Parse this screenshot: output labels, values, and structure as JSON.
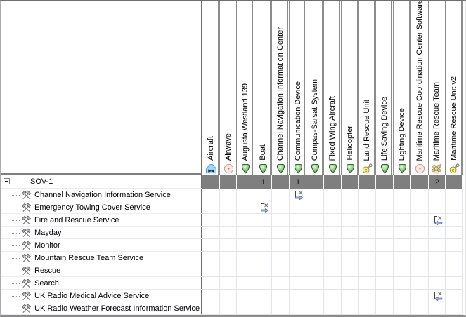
{
  "matrix": {
    "root": {
      "label": "SOV-1",
      "icon": "package-icon",
      "expander": "collapse"
    },
    "columns": [
      {
        "label": "Aircraft",
        "icon": "actor-icon",
        "count": ""
      },
      {
        "label": "Airwave",
        "icon": "disc-icon",
        "count": ""
      },
      {
        "label": "Augusta Westland 139",
        "icon": "capability-icon",
        "count": ""
      },
      {
        "label": "Boat",
        "icon": "capability-icon",
        "count": "1"
      },
      {
        "label": "Channel Navigation Information Center",
        "icon": "capability-icon",
        "count": ""
      },
      {
        "label": "Communication Device",
        "icon": "capability-icon",
        "count": "1"
      },
      {
        "label": "Compas-Sarsat System",
        "icon": "capability-icon",
        "count": ""
      },
      {
        "label": "Fixed Wing Aircraft",
        "icon": "capability-icon",
        "count": ""
      },
      {
        "label": "Helicopter",
        "icon": "capability-icon",
        "count": ""
      },
      {
        "label": "Land Rescue Unit",
        "icon": "resource-wrench-icon",
        "count": ""
      },
      {
        "label": "Life Saving Device",
        "icon": "capability-icon",
        "count": ""
      },
      {
        "label": "Lighting Device",
        "icon": "capability-icon",
        "count": ""
      },
      {
        "label": "Maritime Rescue Coordination Center Software",
        "icon": "disc-icon",
        "count": ""
      },
      {
        "label": "Maritime Rescue Team",
        "icon": "team-icon",
        "count": "2"
      },
      {
        "label": "Maritime Rescue Unit v2",
        "icon": "resource-wrench-icon",
        "count": ""
      }
    ],
    "rows": [
      {
        "label": "Channel Navigation Information Service",
        "icon": "service-icon",
        "links": [
          {
            "column": 5,
            "direction": "right"
          }
        ]
      },
      {
        "label": "Emergency Towing Cover Service",
        "icon": "service-icon",
        "links": [
          {
            "column": 3,
            "direction": "right"
          }
        ]
      },
      {
        "label": "Fire and Rescue Service",
        "icon": "service-icon",
        "links": [
          {
            "column": 13,
            "direction": "left"
          }
        ]
      },
      {
        "label": "Mayday",
        "icon": "service-icon",
        "links": []
      },
      {
        "label": "Monitor",
        "icon": "service-icon",
        "links": []
      },
      {
        "label": "Mountain Rescue Team Service",
        "icon": "service-icon",
        "links": []
      },
      {
        "label": "Rescue",
        "icon": "service-icon",
        "links": []
      },
      {
        "label": "Search",
        "icon": "service-icon",
        "links": []
      },
      {
        "label": "UK Radio Medical Advice Service",
        "icon": "service-icon",
        "links": [
          {
            "column": 13,
            "direction": "left"
          }
        ]
      },
      {
        "label": "UK Radio Weather Forecast Information Service",
        "icon": "service-icon",
        "links": []
      }
    ],
    "colors": {
      "header_border": "#8c8c8c",
      "panel_border": "#6f6f6f",
      "count_band_gray": "#7f7f7f",
      "grid_line": "#e3e3ec",
      "capability_green": "#2e8a2e",
      "arrow_blue": "#b7c3e0",
      "package_pink": "#f4b3a6",
      "actor_blue": "#9fd8f2",
      "unit_yellow": "#f6ef8e"
    }
  }
}
